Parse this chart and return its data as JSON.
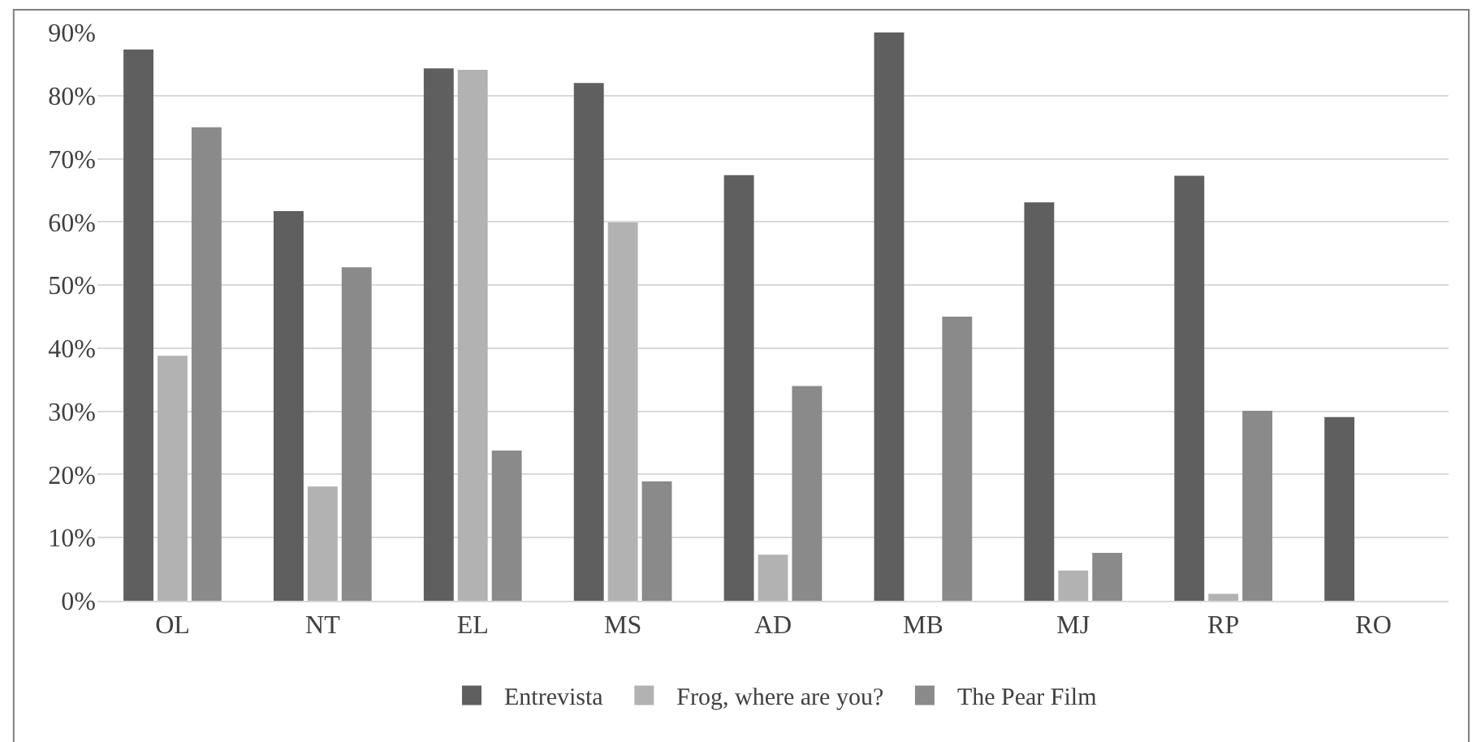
{
  "chart_data": {
    "type": "bar",
    "categories": [
      "OL",
      "NT",
      "EL",
      "MS",
      "AD",
      "MB",
      "MJ",
      "RP",
      "RO"
    ],
    "series": [
      {
        "name": "Entrevista",
        "color": "#5f5f5f",
        "values": [
          87.3,
          61.7,
          84.3,
          82.0,
          67.4,
          90.0,
          63.1,
          67.3,
          29.1
        ]
      },
      {
        "name": "Frog, where are you?",
        "color": "#b2b2b2",
        "values": [
          38.8,
          18.1,
          84.1,
          59.9,
          7.3,
          0,
          4.8,
          1.1,
          0
        ]
      },
      {
        "name": "The Pear Film",
        "color": "#8a8a8a",
        "values": [
          75.0,
          52.8,
          23.8,
          18.9,
          34.0,
          45.0,
          7.6,
          30.1,
          0
        ]
      }
    ],
    "ylim": [
      0,
      90
    ],
    "yticks": [
      {
        "value": 0,
        "label": "0%"
      },
      {
        "value": 10,
        "label": "10%"
      },
      {
        "value": 20,
        "label": "20%"
      },
      {
        "value": 30,
        "label": "30%"
      },
      {
        "value": 40,
        "label": "40%"
      },
      {
        "value": 50,
        "label": "50%"
      },
      {
        "value": 60,
        "label": "60%"
      },
      {
        "value": 70,
        "label": "70%"
      },
      {
        "value": 80,
        "label": "80%"
      },
      {
        "value": 90,
        "label": "90%"
      }
    ],
    "grid": "y",
    "legend": "bottom"
  }
}
